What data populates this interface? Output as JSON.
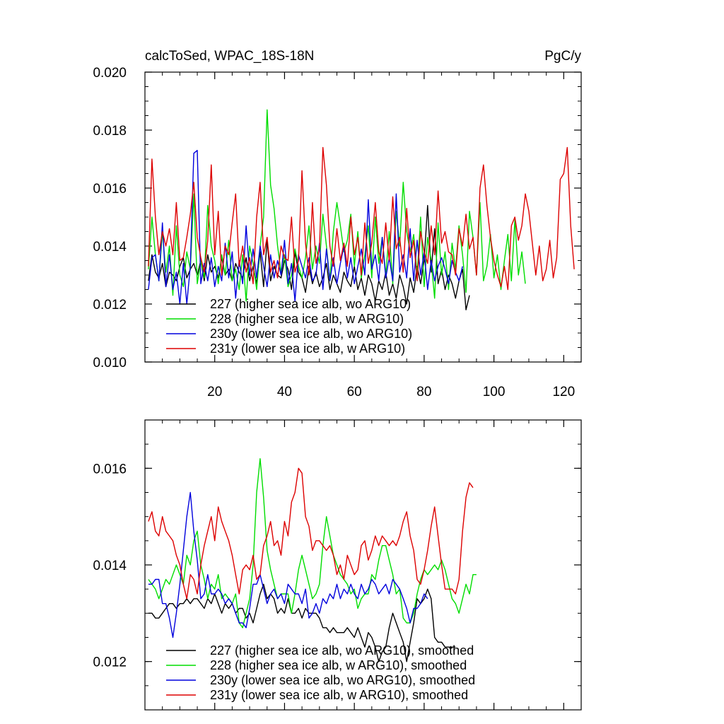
{
  "chart_data": [
    {
      "type": "line",
      "title": "calcToSed, WPAC_18S-18N",
      "unit_label": "PgC/y",
      "xlim": [
        0,
        125
      ],
      "ylim": [
        0.01,
        0.02
      ],
      "x_ticks": [
        20,
        40,
        60,
        80,
        100,
        120
      ],
      "y_ticks": [
        "0.010",
        "0.012",
        "0.014",
        "0.016",
        "0.018",
        "0.020"
      ],
      "y_tick_values": [
        0.01,
        0.012,
        0.014,
        0.016,
        0.018,
        0.02
      ],
      "legend": "bottom-left",
      "series": [
        {
          "name": "227 (higher sea ice alb, wo ARG10)",
          "color": "#000000",
          "values": [
            0.0128,
            0.0137,
            0.0131,
            0.0129,
            0.0134,
            0.0126,
            0.0131,
            0.013,
            0.0128,
            0.0133,
            0.0136,
            0.0129,
            0.0132,
            0.0134,
            0.013,
            0.0135,
            0.0128,
            0.0137,
            0.0131,
            0.0133,
            0.0129,
            0.0136,
            0.013,
            0.0132,
            0.0128,
            0.0134,
            0.0131,
            0.0129,
            0.0136,
            0.0128,
            0.0133,
            0.0127,
            0.0138,
            0.0126,
            0.0142,
            0.0128,
            0.0133,
            0.013,
            0.0129,
            0.0135,
            0.0132,
            0.0125,
            0.0138,
            0.0131,
            0.0129,
            0.0124,
            0.0133,
            0.0127,
            0.0131,
            0.0126,
            0.0129,
            0.0134,
            0.0125,
            0.013,
            0.0127,
            0.0124,
            0.0131,
            0.0128,
            0.0126,
            0.0133,
            0.0125,
            0.0129,
            0.0123,
            0.013,
            0.0127,
            0.0121,
            0.0128,
            0.0125,
            0.0131,
            0.0123,
            0.0127,
            0.0122,
            0.013,
            0.0126,
            0.012,
            0.0129,
            0.0124,
            0.0133,
            0.0127,
            0.0135,
            0.0154,
            0.0131,
            0.0146,
            0.0127,
            0.0132,
            0.0125,
            0.013,
            0.0127,
            0.0122,
            0.0128,
            0.0132,
            0.0118,
            0.0123
          ]
        },
        {
          "name": "228 (higher sea ice alb, w ARG10)",
          "color": "#00dd00",
          "values": [
            0.0132,
            0.015,
            0.0137,
            0.0128,
            0.0145,
            0.0131,
            0.014,
            0.0123,
            0.0147,
            0.013,
            0.0126,
            0.0138,
            0.0132,
            0.0158,
            0.0127,
            0.0135,
            0.0129,
            0.0154,
            0.014,
            0.0135,
            0.0127,
            0.0137,
            0.013,
            0.0142,
            0.0128,
            0.0132,
            0.0125,
            0.0137,
            0.0121,
            0.014,
            0.0134,
            0.0125,
            0.014,
            0.015,
            0.0187,
            0.0161,
            0.0153,
            0.014,
            0.0131,
            0.0137,
            0.0126,
            0.013,
            0.0139,
            0.0133,
            0.0129,
            0.0136,
            0.0147,
            0.0132,
            0.014,
            0.0134,
            0.0151,
            0.014,
            0.0128,
            0.0145,
            0.0155,
            0.0147,
            0.0138,
            0.0142,
            0.0151,
            0.0133,
            0.0145,
            0.0129,
            0.0137,
            0.0147,
            0.0129,
            0.015,
            0.0134,
            0.0143,
            0.013,
            0.0145,
            0.0127,
            0.0152,
            0.014,
            0.0162,
            0.0145,
            0.0138,
            0.0144,
            0.013,
            0.015,
            0.0126,
            0.0143,
            0.0135,
            0.0122,
            0.0148,
            0.013,
            0.0138,
            0.0125,
            0.0141,
            0.0132,
            0.0147,
            0.0137,
            0.0124,
            0.0152,
            0.0143,
            0.013,
            0.0155,
            0.0128,
            0.0133,
            0.0144,
            0.0129,
            0.0137,
            0.0125,
            0.0135,
            0.0144,
            0.0128,
            0.0149,
            0.013,
            0.0138,
            0.0127
          ]
        },
        {
          "name": "230y (lower sea ice alb, wo ARG10)",
          "color": "#0000dd",
          "values": [
            0.0125,
            0.0136,
            0.0137,
            0.0128,
            0.0148,
            0.0126,
            0.0137,
            0.0125,
            0.0131,
            0.012,
            0.0134,
            0.012,
            0.0133,
            0.0172,
            0.0173,
            0.0127,
            0.0134,
            0.0128,
            0.0136,
            0.0126,
            0.0133,
            0.0128,
            0.0141,
            0.0129,
            0.0138,
            0.0122,
            0.0135,
            0.0127,
            0.0147,
            0.013,
            0.0139,
            0.0129,
            0.014,
            0.0133,
            0.0126,
            0.0137,
            0.0129,
            0.0135,
            0.013,
            0.0142,
            0.0127,
            0.0134,
            0.0121,
            0.0137,
            0.0133,
            0.0129,
            0.0136,
            0.0128,
            0.013,
            0.0141,
            0.0125,
            0.0139,
            0.0128,
            0.0136,
            0.0127,
            0.0134,
            0.014,
            0.0129,
            0.0136,
            0.0127,
            0.0133,
            0.0139,
            0.013,
            0.0156,
            0.0132,
            0.0137,
            0.0128,
            0.0143,
            0.0129,
            0.0136,
            0.0128,
            0.0158,
            0.0131,
            0.0137,
            0.0129,
            0.0146,
            0.0128,
            0.0142,
            0.013,
            0.0138,
            0.0125,
            0.0135,
            0.0128,
            0.0133,
            0.0136,
            0.0132,
            0.0127,
            0.0135,
            0.0131,
            0.0128,
            0.0133
          ]
        },
        {
          "name": "231y (lower sea ice alb, w ARG10)",
          "color": "#dd0000",
          "values": [
            0.0133,
            0.017,
            0.015,
            0.0137,
            0.0145,
            0.014,
            0.0146,
            0.0137,
            0.0155,
            0.0135,
            0.0136,
            0.0143,
            0.0151,
            0.0162,
            0.0143,
            0.0136,
            0.0131,
            0.0142,
            0.0168,
            0.0137,
            0.0152,
            0.013,
            0.014,
            0.0137,
            0.0148,
            0.0158,
            0.0133,
            0.014,
            0.0131,
            0.0136,
            0.0127,
            0.015,
            0.0162,
            0.0137,
            0.0143,
            0.0131,
            0.0135,
            0.0129,
            0.014,
            0.0136,
            0.0135,
            0.015,
            0.0131,
            0.0135,
            0.0166,
            0.0141,
            0.013,
            0.0155,
            0.0134,
            0.0139,
            0.0174,
            0.0161,
            0.014,
            0.0133,
            0.0146,
            0.0135,
            0.0141,
            0.0133,
            0.015,
            0.0137,
            0.0143,
            0.013,
            0.0148,
            0.0134,
            0.0141,
            0.0155,
            0.0138,
            0.0134,
            0.0148,
            0.0135,
            0.0157,
            0.0139,
            0.0143,
            0.0131,
            0.0153,
            0.0136,
            0.0142,
            0.0128,
            0.0145,
            0.0138,
            0.0134,
            0.0147,
            0.0137,
            0.0159,
            0.0141,
            0.0145,
            0.0138,
            0.0137,
            0.013,
            0.0146,
            0.014,
            0.0151,
            0.0139,
            0.0143,
            0.013,
            0.016,
            0.0168,
            0.0154,
            0.0143,
            0.0135,
            0.013,
            0.0126,
            0.0133,
            0.0125,
            0.0147,
            0.015,
            0.0142,
            0.0147,
            0.0158,
            0.0152,
            0.0141,
            0.013,
            0.014,
            0.0128,
            0.0132,
            0.0142,
            0.0129,
            0.0136,
            0.0163,
            0.0165,
            0.0174,
            0.0147,
            0.0132
          ]
        }
      ]
    },
    {
      "type": "line",
      "xlim": [
        0,
        125
      ],
      "ylim": [
        0.011,
        0.017
      ],
      "x_ticks": [
        20,
        40,
        60,
        80,
        100,
        120
      ],
      "y_ticks": [
        "0.012",
        "0.014",
        "0.016"
      ],
      "y_tick_values": [
        0.012,
        0.014,
        0.016
      ],
      "legend": "bottom-left",
      "series": [
        {
          "name": "227 (higher sea ice alb, wo ARG10), smoothed",
          "color": "#000000",
          "values": [
            0.013,
            0.013,
            0.0129,
            0.0129,
            0.013,
            0.0131,
            0.0132,
            0.0132,
            0.0131,
            0.0132,
            0.0132,
            0.0133,
            0.0132,
            0.0133,
            0.0133,
            0.0132,
            0.0131,
            0.0133,
            0.0132,
            0.0134,
            0.0132,
            0.013,
            0.0132,
            0.0131,
            0.0132,
            0.013,
            0.0131,
            0.0131,
            0.0129,
            0.013,
            0.0128,
            0.0131,
            0.0134,
            0.0136,
            0.0133,
            0.0134,
            0.0133,
            0.013,
            0.0131,
            0.013,
            0.0133,
            0.013,
            0.013,
            0.0131,
            0.0129,
            0.0131,
            0.013,
            0.013,
            0.013,
            0.0129,
            0.0127,
            0.0127,
            0.0126,
            0.0127,
            0.0126,
            0.0126,
            0.0126,
            0.0127,
            0.0126,
            0.0125,
            0.0127,
            0.0125,
            0.0123,
            0.0126,
            0.0125,
            0.0123,
            0.012,
            0.0122,
            0.0123,
            0.0127,
            0.013,
            0.0128,
            0.0126,
            0.0124,
            0.012,
            0.0124,
            0.0128,
            0.0133,
            0.0132,
            0.0133,
            0.0135,
            0.0133,
            0.0125,
            0.0124,
            0.0124,
            0.0123,
            0.0123,
            0.0123,
            0.0123
          ]
        },
        {
          "name": "228 (higher sea ice alb, w ARG10), smoothed",
          "color": "#00dd00",
          "values": [
            0.0137,
            0.0136,
            0.0135,
            0.0133,
            0.0135,
            0.0137,
            0.0136,
            0.0138,
            0.014,
            0.0138,
            0.0136,
            0.0142,
            0.014,
            0.0145,
            0.0147,
            0.014,
            0.0137,
            0.0133,
            0.0136,
            0.0135,
            0.0138,
            0.0133,
            0.0134,
            0.0133,
            0.0132,
            0.0134,
            0.0128,
            0.0127,
            0.013,
            0.0133,
            0.014,
            0.0155,
            0.0162,
            0.0154,
            0.0143,
            0.0139,
            0.0136,
            0.0133,
            0.0134,
            0.0134,
            0.0134,
            0.013,
            0.0134,
            0.0139,
            0.0142,
            0.0139,
            0.0136,
            0.0133,
            0.0134,
            0.0136,
            0.0144,
            0.015,
            0.0146,
            0.0142,
            0.014,
            0.0138,
            0.0137,
            0.0136,
            0.0134,
            0.0135,
            0.0131,
            0.0133,
            0.0134,
            0.0134,
            0.0138,
            0.0137,
            0.0141,
            0.0144,
            0.0144,
            0.0141,
            0.0138,
            0.0134,
            0.0135,
            0.0129,
            0.0128,
            0.0128,
            0.013,
            0.0134,
            0.0137,
            0.0139,
            0.0138,
            0.0139,
            0.014,
            0.0139,
            0.0141,
            0.0139,
            0.0136,
            0.0133,
            0.0132,
            0.013,
            0.0133,
            0.0136,
            0.0134,
            0.0138,
            0.0138
          ]
        },
        {
          "name": "230y (lower sea ice alb, wo ARG10), smoothed",
          "color": "#0000dd",
          "values": [
            0.0136,
            0.0136,
            0.0137,
            0.0137,
            0.0132,
            0.0132,
            0.0129,
            0.0125,
            0.013,
            0.0136,
            0.0143,
            0.015,
            0.0155,
            0.0147,
            0.0141,
            0.0133,
            0.0134,
            0.0138,
            0.0134,
            0.0134,
            0.0135,
            0.0134,
            0.0132,
            0.0133,
            0.0132,
            0.013,
            0.0128,
            0.0128,
            0.0127,
            0.0131,
            0.0136,
            0.0136,
            0.0138,
            0.0135,
            0.0132,
            0.0134,
            0.0135,
            0.0133,
            0.0134,
            0.0132,
            0.0136,
            0.0135,
            0.0134,
            0.0134,
            0.0132,
            0.0135,
            0.0129,
            0.013,
            0.0132,
            0.013,
            0.0133,
            0.0132,
            0.0134,
            0.0133,
            0.0136,
            0.0133,
            0.0135,
            0.0134,
            0.0136,
            0.0134,
            0.0133,
            0.0136,
            0.0134,
            0.0135,
            0.0137,
            0.0136,
            0.0134,
            0.0135,
            0.0136,
            0.0134,
            0.0137,
            0.0136,
            0.0135,
            0.0133,
            0.0131,
            0.0128,
            0.0131,
            0.0131,
            0.0132,
            0.0134,
            0.0133
          ]
        },
        {
          "name": "231y (lower sea ice alb, w ARG10), smoothed",
          "color": "#dd0000",
          "values": [
            0.0149,
            0.0151,
            0.0147,
            0.0146,
            0.015,
            0.0147,
            0.0146,
            0.0145,
            0.0142,
            0.014,
            0.0136,
            0.0133,
            0.0138,
            0.0137,
            0.0134,
            0.014,
            0.0144,
            0.0147,
            0.015,
            0.0145,
            0.0152,
            0.0149,
            0.0147,
            0.0145,
            0.0142,
            0.0138,
            0.0134,
            0.0139,
            0.014,
            0.0139,
            0.0142,
            0.0137,
            0.0138,
            0.0144,
            0.0146,
            0.0149,
            0.0144,
            0.0145,
            0.0142,
            0.0149,
            0.0146,
            0.0153,
            0.0155,
            0.016,
            0.0159,
            0.015,
            0.0148,
            0.0143,
            0.0145,
            0.0145,
            0.0144,
            0.0143,
            0.0144,
            0.0142,
            0.0138,
            0.014,
            0.0137,
            0.0142,
            0.014,
            0.0138,
            0.0139,
            0.0144,
            0.0145,
            0.0141,
            0.0143,
            0.0146,
            0.0144,
            0.0146,
            0.0145,
            0.0144,
            0.0145,
            0.0144,
            0.0146,
            0.0149,
            0.0151,
            0.0146,
            0.0143,
            0.0137,
            0.0136,
            0.0139,
            0.0143,
            0.0148,
            0.0152,
            0.0146,
            0.014,
            0.0135,
            0.0135,
            0.0135,
            0.0134,
            0.0137,
            0.0147,
            0.0154,
            0.0157,
            0.0156
          ]
        }
      ]
    }
  ]
}
